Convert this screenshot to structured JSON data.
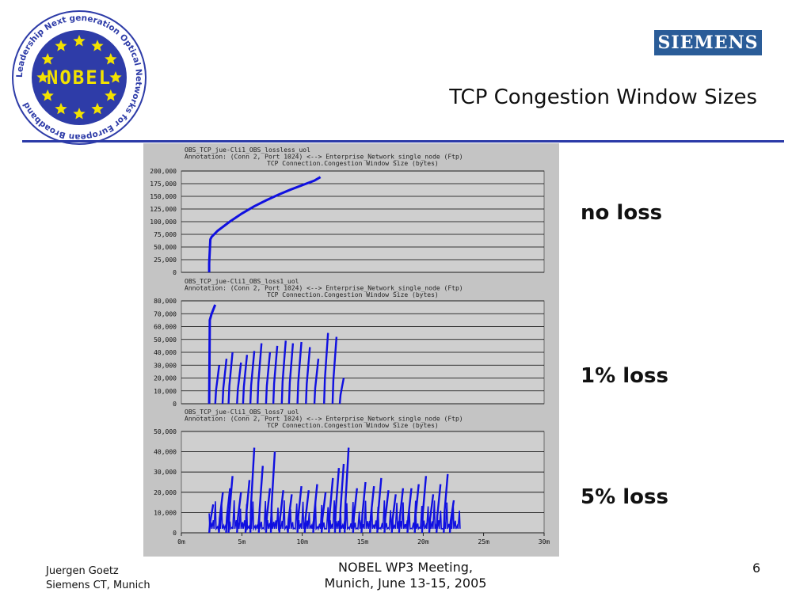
{
  "slide": {
    "title": "TCP Congestion Window Sizes",
    "logo_left": {
      "icon": "nobel-logo-icon",
      "center_text": "NOBEL",
      "ring_text_top": "Next generation Optical",
      "ring_text_left": "Leadership",
      "ring_text_right": "Networks for",
      "ring_text_bottom": "European Broadband",
      "colors": {
        "ring": "#2e3ca8",
        "field": "#2e3ca8",
        "stars": "#f2e200",
        "center": "#f2e200"
      }
    },
    "logo_right": {
      "icon": "siemens-logo-icon",
      "text": "SIEMENS",
      "color": "#2a5c98"
    },
    "rule_color": "#2b3aa8",
    "labels": [
      "no loss",
      "1% loss",
      "5% loss"
    ],
    "footer": {
      "author": "Juergen Goetz",
      "affiliation": "Siemens CT, Munich",
      "meeting_line1": "NOBEL WP3 Meeting,",
      "meeting_line2": "Munich, June 13-15, 2005",
      "page": "6"
    }
  },
  "chart_data": [
    {
      "type": "line",
      "header": [
        "OBS_TCP_jue-Cli1_OBS_lossless_uol",
        "Annotation: (Conn 2, Port 1024) <--> Enterprise_Network_single_node (Ftp)",
        "TCP Connection.Congestion Window Size (bytes)"
      ],
      "y_ticks": [
        "200,000",
        "175,000",
        "150,000",
        "125,000",
        "100,000",
        "75,000",
        "50,000",
        "25,000",
        "0"
      ],
      "ylim": [
        0,
        200000
      ],
      "xlim_min": [
        0,
        30
      ],
      "series_color": "#1010e0",
      "x": [
        2.3,
        2.3,
        2.4,
        2.5,
        3,
        4,
        5,
        6,
        7,
        8,
        9,
        10,
        11,
        11.5
      ],
      "y": [
        0,
        18000,
        65000,
        70000,
        82000,
        100000,
        116000,
        130000,
        142000,
        153000,
        163000,
        172000,
        181000,
        188000
      ]
    },
    {
      "type": "line",
      "header": [
        "OBS_TCP_jue-Cli1_OBS_loss1_uol",
        "Annotation: (Conn 2, Port 1024) <--> Enterprise_Network_single_node (Ftp)",
        "TCP Connection.Congestion Window Size (bytes)"
      ],
      "y_ticks": [
        "80,000",
        "70,000",
        "60,000",
        "50,000",
        "40,000",
        "30,000",
        "20,000",
        "10,000",
        "0"
      ],
      "ylim": [
        0,
        80000
      ],
      "xlim_min": [
        0,
        30
      ],
      "series_color": "#1010e0",
      "initial_ramp": {
        "x": [
          2.3,
          2.35,
          2.5,
          2.8
        ],
        "y": [
          0,
          65000,
          70000,
          77000
        ]
      },
      "sawtooth_peaks": {
        "x": [
          3.0,
          3.6,
          4.1,
          4.8,
          5.3,
          5.9,
          6.5,
          7.2,
          7.8,
          8.5,
          9.1,
          9.8,
          10.5,
          11.2,
          12.0,
          12.7,
          13.3
        ],
        "y": [
          30000,
          35000,
          40000,
          32000,
          38000,
          41000,
          47000,
          40000,
          45000,
          49000,
          47000,
          48000,
          44000,
          35000,
          55000,
          52000,
          20000
        ]
      }
    },
    {
      "type": "line",
      "header": [
        "OBS_TCP_jue-Cli1_OBS_loss7_uol",
        "Annotation: (Conn 2, Port 1024) <--> Enterprise_Network_single_node (Ftp)",
        "TCP Connection.Congestion Window Size (bytes)"
      ],
      "y_ticks": [
        "50,000",
        "40,000",
        "30,000",
        "20,000",
        "10,000",
        "0"
      ],
      "ylim": [
        0,
        50000
      ],
      "x_ticks": [
        "0m",
        "5m",
        "10m",
        "15m",
        "20m",
        "25m",
        "30m"
      ],
      "xlim_min": [
        0,
        30
      ],
      "xlabel": "",
      "series_color": "#1010e0",
      "sawtooth_peaks": {
        "x": [
          2.5,
          3.3,
          3.9,
          4.1,
          4.8,
          5.5,
          5.9,
          6.6,
          7.2,
          7.6,
          8.3,
          9.0,
          9.8,
          10.4,
          11.1,
          11.8,
          12.4,
          12.9,
          13.3,
          13.7,
          14.4,
          15.1,
          15.8,
          16.4,
          17.0,
          17.6,
          18.2,
          18.9,
          19.5,
          20.1,
          20.7,
          21.3,
          21.9,
          22.4
        ],
        "y": [
          14000,
          20000,
          22000,
          28000,
          20000,
          26000,
          42000,
          33000,
          22000,
          40000,
          21000,
          19000,
          23000,
          21000,
          24000,
          20000,
          27000,
          32000,
          34000,
          42000,
          22000,
          25000,
          23000,
          27000,
          21000,
          19000,
          22000,
          22000,
          24000,
          28000,
          19000,
          24000,
          29000,
          16000
        ]
      },
      "baseline_band": {
        "x_start": 2.3,
        "x_end": 23.0,
        "y_low": 2000,
        "y_high": 16000
      }
    }
  ]
}
